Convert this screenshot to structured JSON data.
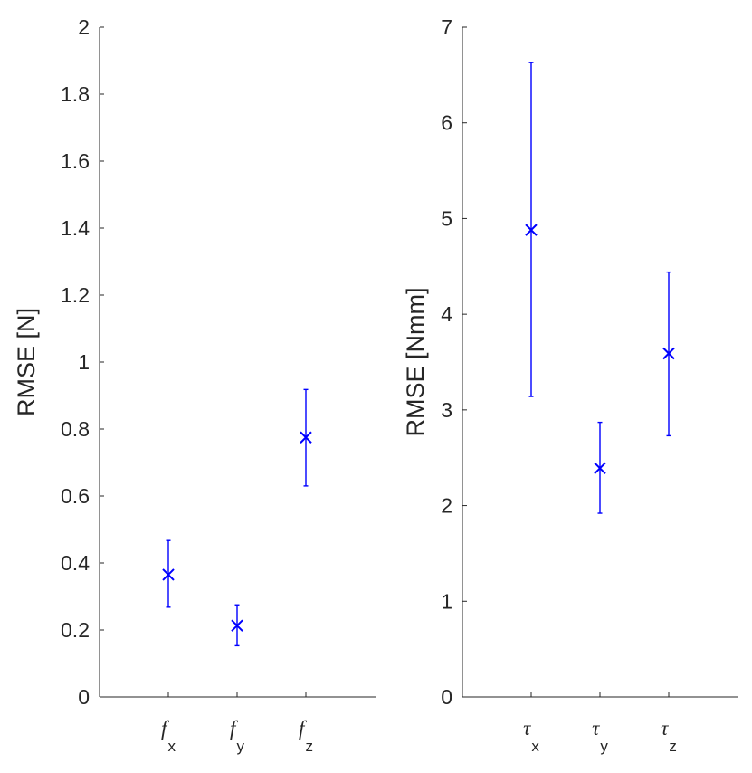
{
  "chart_data": [
    {
      "type": "scatter",
      "title": "",
      "xlabel": "",
      "ylabel": "RMSE [N]",
      "ylim": [
        0,
        2
      ],
      "yticks": [
        "0",
        "0.2",
        "0.4",
        "0.6",
        "0.8",
        "1",
        "1.2",
        "1.4",
        "1.6",
        "1.8",
        "2"
      ],
      "categories": [
        {
          "base": "f",
          "sub": "x"
        },
        {
          "base": "f",
          "sub": "y"
        },
        {
          "base": "f",
          "sub": "z"
        }
      ],
      "series": [
        {
          "marker": "x",
          "color": "#0000ff",
          "values": [
            0.365,
            0.213,
            0.775
          ],
          "error_low": [
            0.268,
            0.153,
            0.63
          ],
          "error_high": [
            0.467,
            0.275,
            0.918
          ]
        }
      ],
      "grid": false,
      "legend": "none"
    },
    {
      "type": "scatter",
      "title": "",
      "xlabel": "",
      "ylabel": "RMSE [Nmm]",
      "ylim": [
        0,
        7
      ],
      "yticks": [
        "0",
        "1",
        "2",
        "3",
        "4",
        "5",
        "6",
        "7"
      ],
      "categories": [
        {
          "base": "τ",
          "sub": "x"
        },
        {
          "base": "τ",
          "sub": "y"
        },
        {
          "base": "τ",
          "sub": "z"
        }
      ],
      "series": [
        {
          "marker": "x",
          "color": "#0000ff",
          "values": [
            4.88,
            2.39,
            3.59
          ],
          "error_low": [
            3.14,
            1.92,
            2.73
          ],
          "error_high": [
            6.63,
            2.87,
            4.44
          ]
        }
      ],
      "grid": false,
      "legend": "none"
    }
  ]
}
